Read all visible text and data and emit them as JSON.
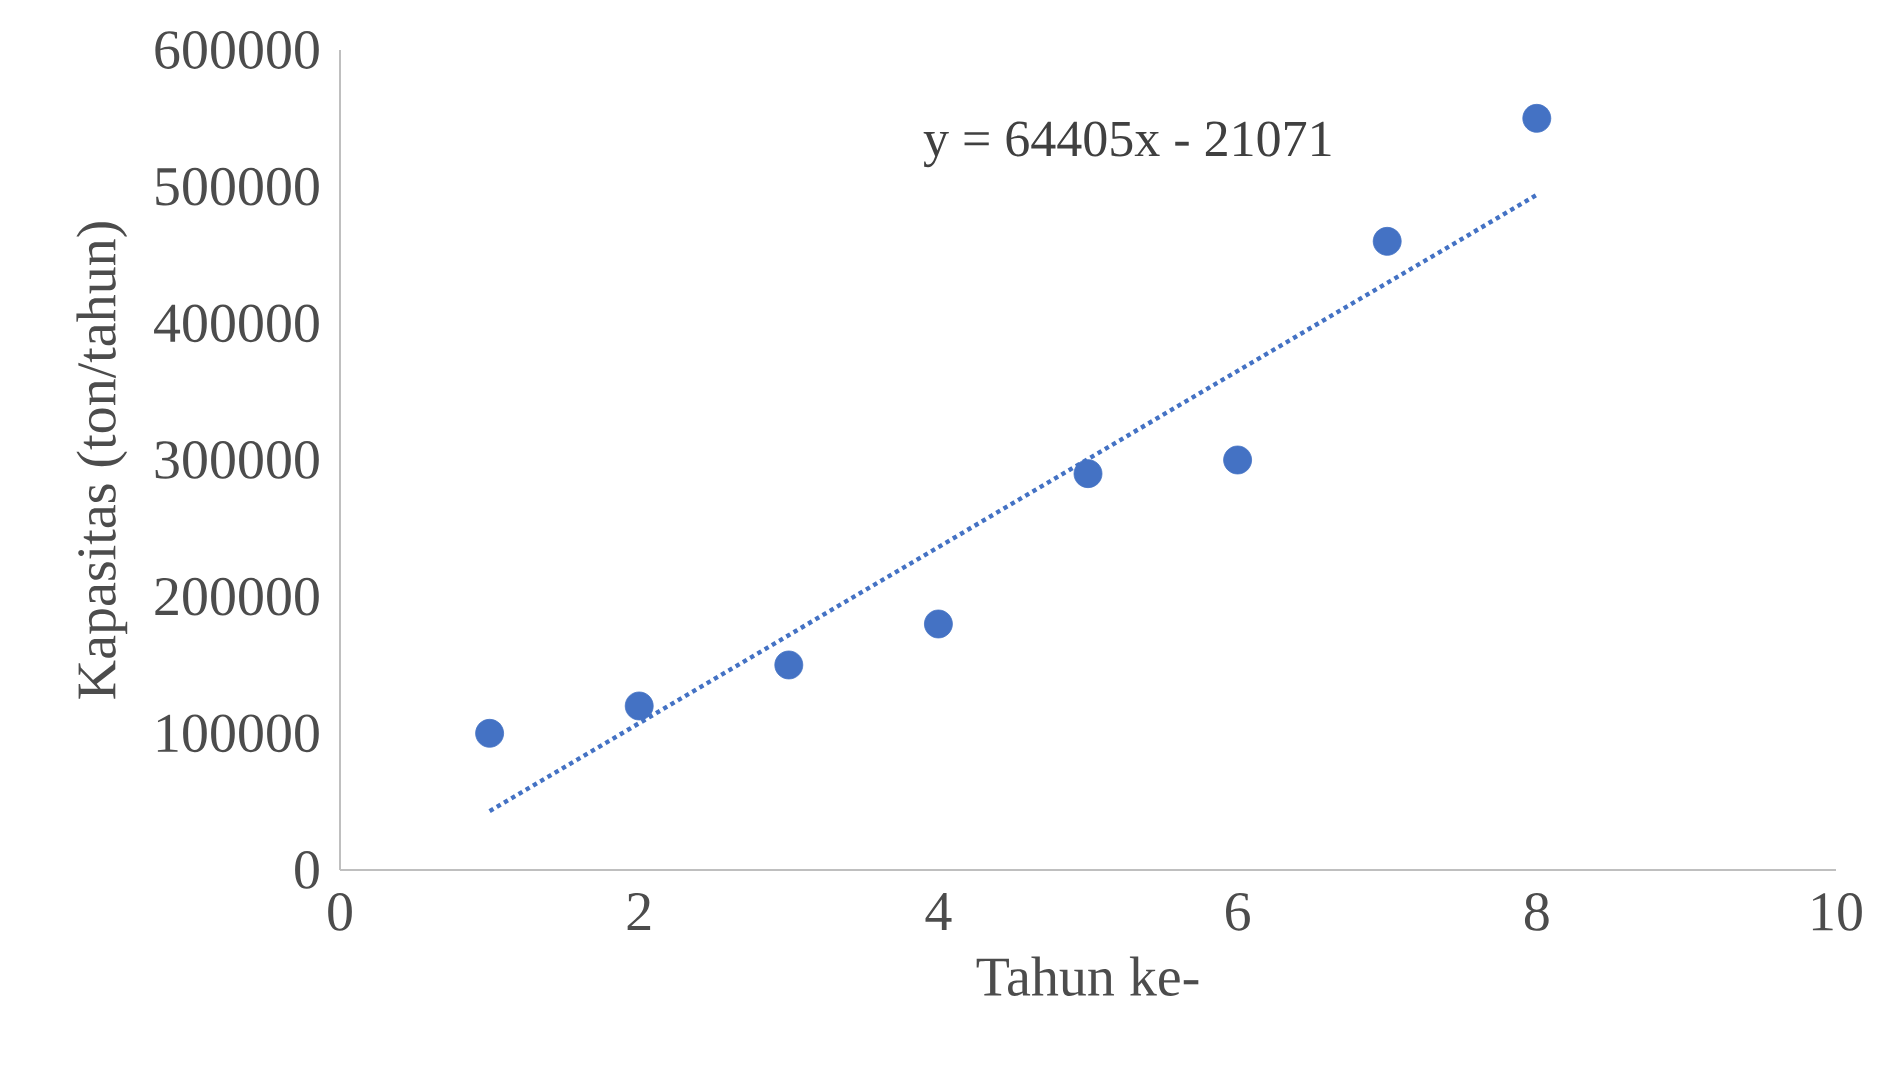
{
  "chart_data": {
    "type": "scatter",
    "xlabel": "Tahun ke-",
    "ylabel": "Kapasitas (ton/tahun)",
    "annotations": [
      "y = 64405x - 21071"
    ],
    "xlim": [
      0,
      10
    ],
    "ylim": [
      0,
      600000
    ],
    "xticks": [
      0,
      2,
      4,
      6,
      8,
      10
    ],
    "yticks": [
      0,
      100000,
      200000,
      300000,
      400000,
      500000,
      600000
    ],
    "grid": false,
    "series": [
      {
        "marker": "circle",
        "color": "#4472c4",
        "x": [
          1,
          2,
          3,
          4,
          5,
          6,
          7,
          8
        ],
        "values": [
          100000,
          120000,
          150000,
          180000,
          290000,
          300000,
          460000,
          550000
        ]
      },
      {
        "type": "line",
        "marker": "none",
        "color": "#4472c4",
        "line_style": "dotted",
        "x": [
          1,
          8
        ],
        "values": [
          43000,
          494000
        ]
      }
    ]
  }
}
